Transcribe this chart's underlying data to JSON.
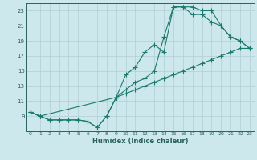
{
  "xlabel": "Humidex (Indice chaleur)",
  "bg_color": "#cce8ec",
  "grid_color": "#b0ced4",
  "line_color": "#1a7a6e",
  "spine_color": "#2a6060",
  "xlim": [
    -0.5,
    23.5
  ],
  "ylim": [
    7,
    24
  ],
  "xticks": [
    0,
    1,
    2,
    3,
    4,
    5,
    6,
    7,
    8,
    9,
    10,
    11,
    12,
    13,
    14,
    15,
    16,
    17,
    18,
    19,
    20,
    21,
    22,
    23
  ],
  "yticks": [
    9,
    11,
    13,
    15,
    17,
    19,
    21,
    23
  ],
  "line1_x": [
    0,
    1,
    2,
    3,
    4,
    5,
    6,
    7,
    8,
    9,
    10,
    11,
    12,
    13,
    14,
    15,
    16,
    17,
    18,
    19,
    20,
    21,
    22,
    23
  ],
  "line1_y": [
    9.5,
    9.0,
    8.5,
    8.5,
    8.5,
    8.5,
    8.3,
    7.5,
    9.0,
    11.5,
    14.5,
    15.5,
    17.5,
    18.5,
    17.5,
    23.5,
    23.5,
    23.5,
    23.0,
    23.0,
    21.0,
    19.5,
    19.0,
    18.0
  ],
  "line2_x": [
    0,
    1,
    2,
    3,
    4,
    5,
    6,
    7,
    8,
    9,
    10,
    11,
    12,
    13,
    14,
    15,
    16,
    17,
    18,
    19,
    20,
    21,
    22,
    23
  ],
  "line2_y": [
    9.5,
    9.0,
    8.5,
    8.5,
    8.5,
    8.5,
    8.3,
    7.5,
    9.0,
    11.5,
    12.5,
    13.5,
    14.0,
    15.0,
    19.5,
    23.5,
    23.5,
    22.5,
    22.5,
    21.5,
    21.0,
    19.5,
    19.0,
    18.0
  ],
  "line3_x": [
    0,
    1,
    9,
    10,
    11,
    12,
    13,
    14,
    15,
    16,
    17,
    18,
    19,
    20,
    21,
    22,
    23
  ],
  "line3_y": [
    9.5,
    9.0,
    11.5,
    12.0,
    12.5,
    13.0,
    13.5,
    14.0,
    14.5,
    15.0,
    15.5,
    16.0,
    16.5,
    17.0,
    17.5,
    18.0,
    18.0
  ]
}
